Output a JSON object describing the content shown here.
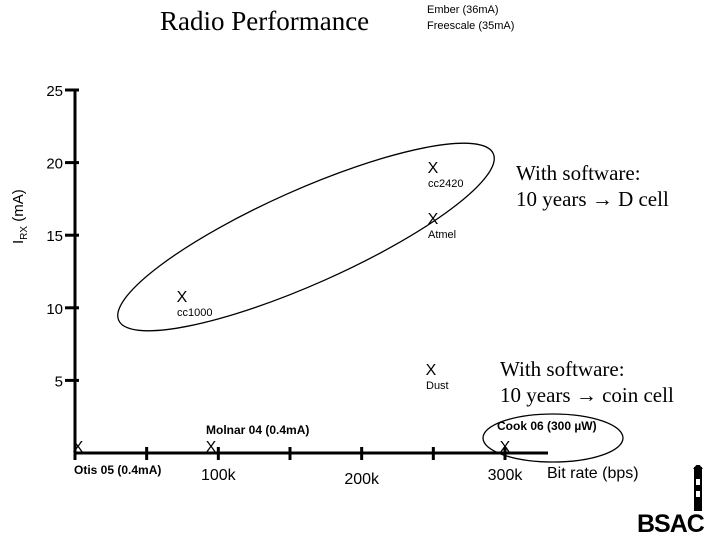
{
  "title": "Radio Performance",
  "legend_lines": [
    "Ember (36mA)",
    "Freescale (35mA)"
  ],
  "notes": [
    {
      "line1": "With software:",
      "line2_prefix": "10 years ",
      "line2_arrow": "→",
      "line2_suffix": " D cell"
    },
    {
      "line1": "With software:",
      "line2_prefix": "10 years ",
      "line2_arrow": "→",
      "line2_suffix": " coin cell"
    }
  ],
  "logo_text": "BSAC",
  "chart_data": {
    "type": "scatter",
    "title": "Radio Performance",
    "ylabel_main": "I",
    "ylabel_sub": "RX",
    "ylabel_unit": " (mA)",
    "xlabel": "Bit rate (bps)",
    "ylim": [
      0,
      25
    ],
    "y_ticks": [
      5,
      10,
      15,
      20,
      25
    ],
    "x_ticks": [
      "100k",
      "200k",
      "300k"
    ],
    "marker": "X",
    "points": [
      {
        "label": "Otis 05 (0.4mA)",
        "x": 0,
        "y": 0.4
      },
      {
        "label": "Molnar 04 (0.4mA)",
        "x": 100000,
        "y": 0.4
      },
      {
        "label": "Cook 06 (300 µW)",
        "x": 300000,
        "y": 0.4
      },
      {
        "label": "cc1000",
        "x": 76800,
        "y": 10.5
      },
      {
        "label": "Atmel",
        "x": 250000,
        "y": 15.5
      },
      {
        "label": "cc2420",
        "x": 250000,
        "y": 19.5
      },
      {
        "label": "Dust",
        "x": 250000,
        "y": 5.5
      }
    ]
  }
}
